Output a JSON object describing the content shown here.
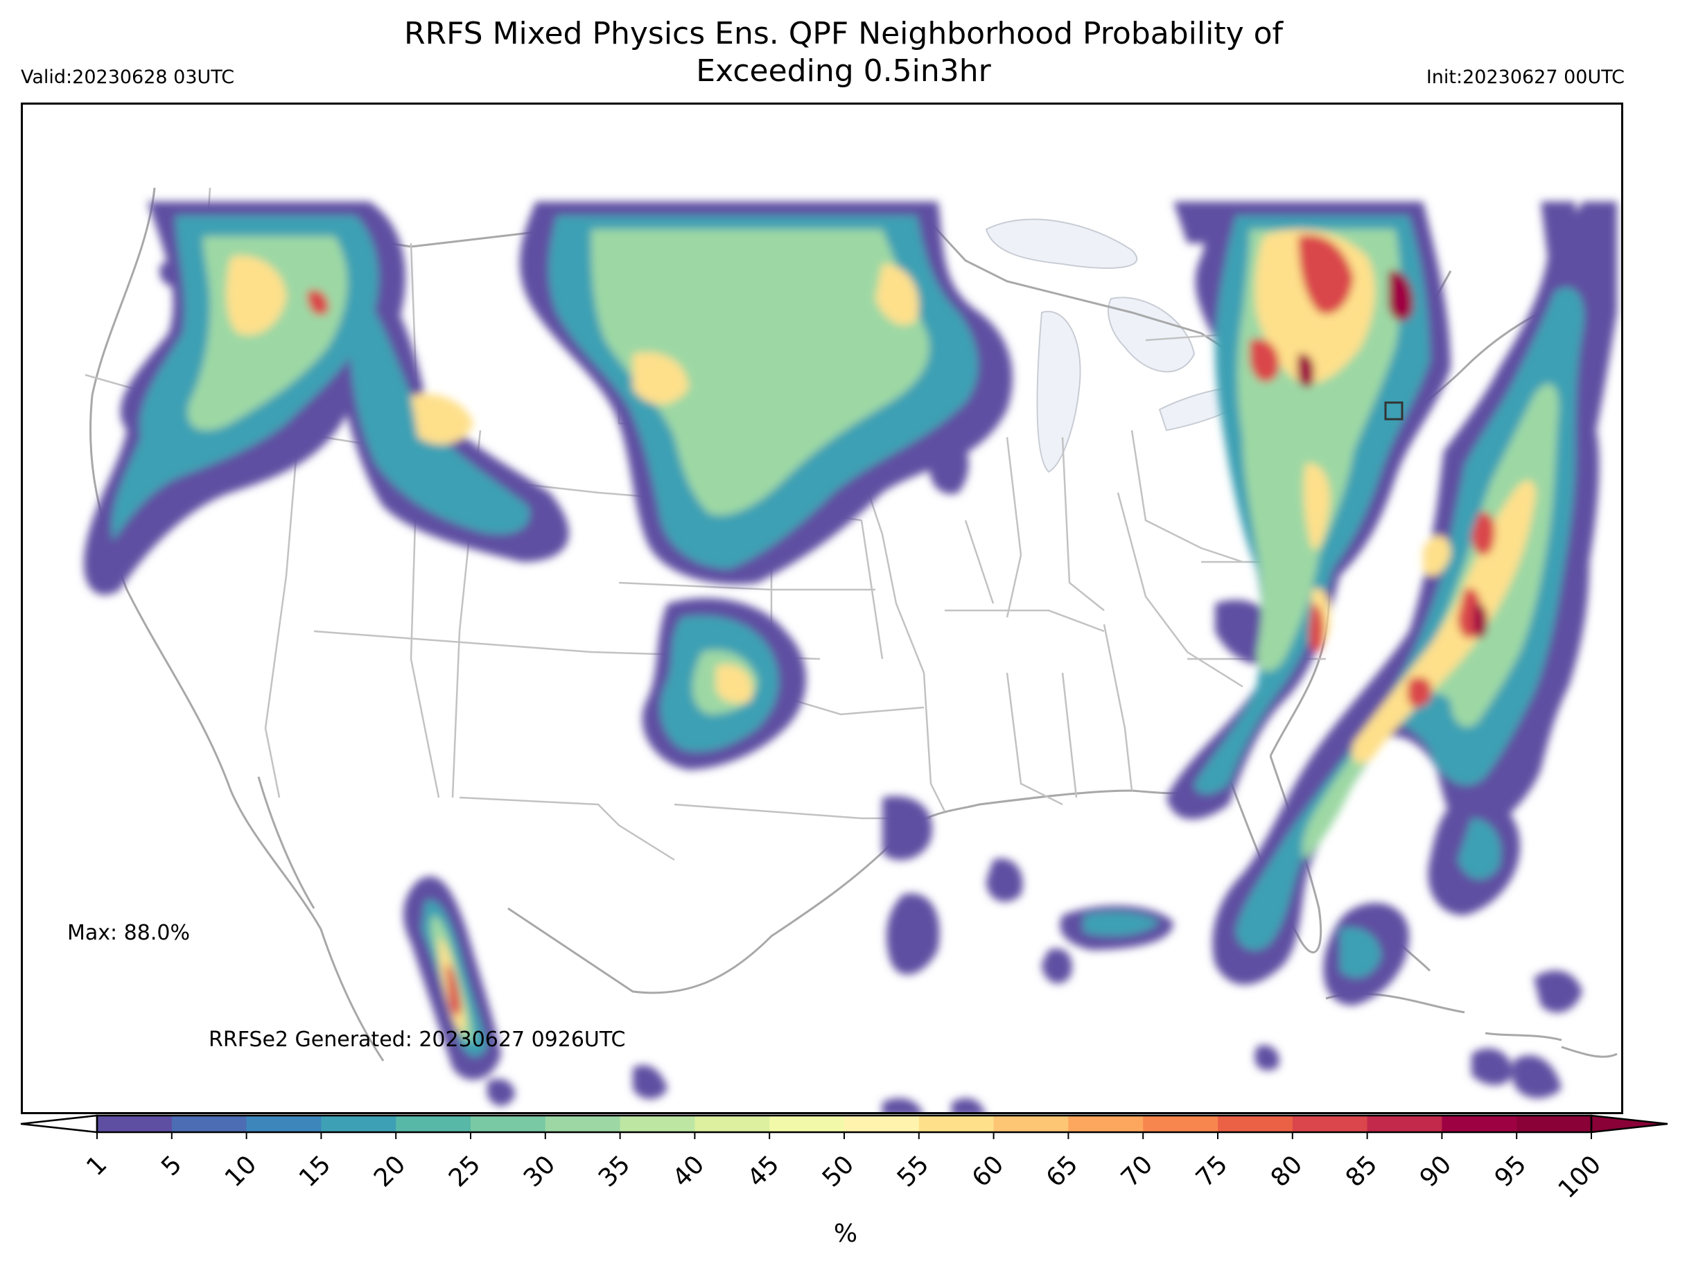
{
  "title_line1": "RRFS Mixed Physics Ens. QPF Neighborhood Probability of",
  "title_line2": "Exceeding 0.5in3hr",
  "valid": "Valid:20230628 03UTC",
  "init": "Init:20230627 00UTC",
  "max_text": "Max: 88.0%",
  "generated": "RRFSe2 Generated: 20230627 0926UTC",
  "colorbar": {
    "unit": "%",
    "ticks": [
      "1",
      "5",
      "10",
      "15",
      "20",
      "25",
      "30",
      "35",
      "40",
      "45",
      "50",
      "55",
      "60",
      "65",
      "70",
      "75",
      "80",
      "85",
      "90",
      "95",
      "100"
    ],
    "colors": [
      "#5e4fa2",
      "#4c6db4",
      "#3c86bc",
      "#3ea0b4",
      "#57b8a8",
      "#79c9a4",
      "#9dd8a4",
      "#bde6a3",
      "#dcf0a0",
      "#f2f9a8",
      "#fff3ad",
      "#fee08b",
      "#fdc675",
      "#fca75d",
      "#f7864e",
      "#eb6146",
      "#da464c",
      "#c2294a",
      "#9e0142",
      "#8a0137"
    ]
  },
  "map": {
    "highlight_box": "domain-marker"
  }
}
